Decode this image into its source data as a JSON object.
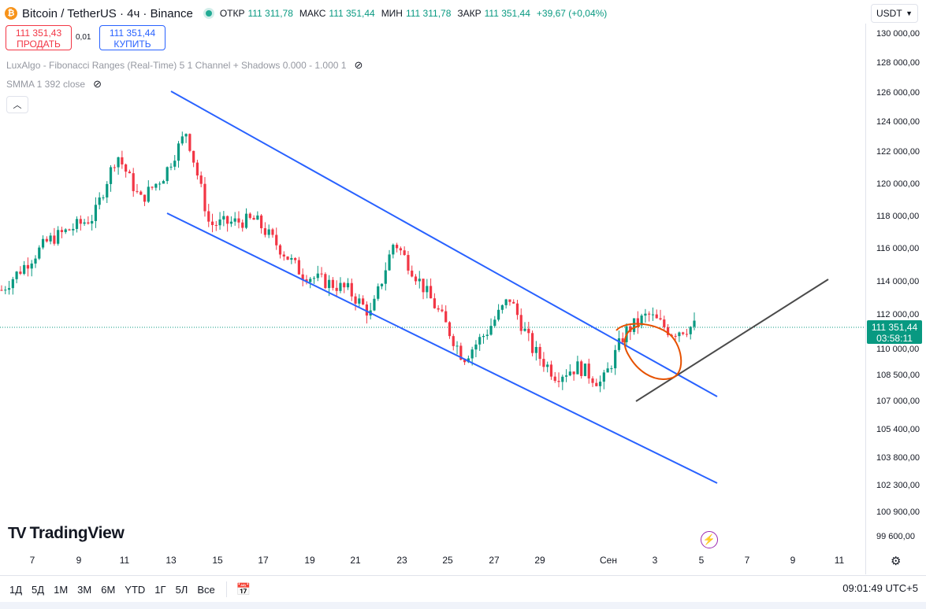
{
  "header": {
    "coin_icon": "bitcoin-icon",
    "symbol": "Bitcoin / TetherUS · 4ч · Binance",
    "ohlc": [
      {
        "key": "ОТКР",
        "value": "111 311,78"
      },
      {
        "key": "МАКС",
        "value": "111 351,44"
      },
      {
        "key": "МИН",
        "value": "111 311,78"
      },
      {
        "key": "ЗАКР",
        "value": "111 351,44"
      }
    ],
    "change": "+39,67 (+0,04%)",
    "currency": "USDT"
  },
  "trade": {
    "sell_price": "111 351,43",
    "sell_label": "ПРОДАТЬ",
    "spread": "0,01",
    "buy_price": "111 351,44",
    "buy_label": "КУПИТЬ"
  },
  "indicators": [
    {
      "label": "LuxAlgo - Fibonacci Ranges (Real-Time) 5 1 Channel + Shadows 0.000 - 1.000 1"
    },
    {
      "label": "SMMA 1 392 close"
    }
  ],
  "price_axis": [
    "130 000,00",
    "128 000,00",
    "126 000,00",
    "124 000,00",
    "122 000,00",
    "120 000,00",
    "118 000,00",
    "116 000,00",
    "114 000,00",
    "112 000,00",
    "110 000,00",
    "108 500,00",
    "107 000,00",
    "105 400,00",
    "103 800,00",
    "102 300,00",
    "100 900,00",
    "99 600,00"
  ],
  "current_price": {
    "price": "111 351,44",
    "countdown": "03:58:11"
  },
  "time_axis": [
    "7",
    "9",
    "11",
    "13",
    "15",
    "17",
    "19",
    "21",
    "23",
    "25",
    "27",
    "29",
    "Сен",
    "3",
    "5",
    "7",
    "9",
    "11"
  ],
  "branding": {
    "logo_text": "TradingView"
  },
  "bottom": {
    "ranges": [
      "1Д",
      "5Д",
      "1М",
      "3М",
      "6М",
      "YTD",
      "1Г",
      "5Л",
      "Все"
    ],
    "clock": "09:01:49 UTC+5"
  },
  "chart_data": {
    "type": "candlestick",
    "symbol": "BTCUSDT",
    "interval": "4h",
    "x": [
      "7",
      "9",
      "11",
      "13",
      "15",
      "17",
      "19",
      "21",
      "23",
      "25",
      "27",
      "29",
      "Сен",
      "3",
      "5",
      "7",
      "9",
      "11"
    ],
    "ylim": [
      99000,
      131000
    ],
    "up_color": "#089981",
    "down_color": "#f23645",
    "approx_close_path": [
      {
        "x": "6 Aug",
        "y": 113500
      },
      {
        "x": "8 Aug",
        "y": 116500
      },
      {
        "x": "10 Aug",
        "y": 118000
      },
      {
        "x": "11 Aug",
        "y": 122000
      },
      {
        "x": "12 Aug",
        "y": 119000
      },
      {
        "x": "13 Aug",
        "y": 120500
      },
      {
        "x": "14 Aug",
        "y": 123500
      },
      {
        "x": "15 Aug",
        "y": 117500
      },
      {
        "x": "17 Aug",
        "y": 117800
      },
      {
        "x": "19 Aug",
        "y": 114500
      },
      {
        "x": "21 Aug",
        "y": 113500
      },
      {
        "x": "22 Aug",
        "y": 112000
      },
      {
        "x": "23 Aug",
        "y": 116500
      },
      {
        "x": "25 Aug",
        "y": 112000
      },
      {
        "x": "26 Aug",
        "y": 109500
      },
      {
        "x": "27 Aug",
        "y": 111000
      },
      {
        "x": "28 Aug",
        "y": 113000
      },
      {
        "x": "29 Aug",
        "y": 110000
      },
      {
        "x": "30 Aug",
        "y": 108500
      },
      {
        "x": "31 Aug",
        "y": 109000
      },
      {
        "x": "1 Sep",
        "y": 108000
      },
      {
        "x": "2 Sep",
        "y": 111000
      },
      {
        "x": "3 Sep",
        "y": 112000
      },
      {
        "x": "4 Sep",
        "y": 111000
      },
      {
        "x": "5 Sep",
        "y": 111351
      }
    ],
    "drawings": {
      "channel_color": "#2962ff",
      "trendline_color": "#4a4a4a",
      "circle_color": "#e65100"
    }
  }
}
